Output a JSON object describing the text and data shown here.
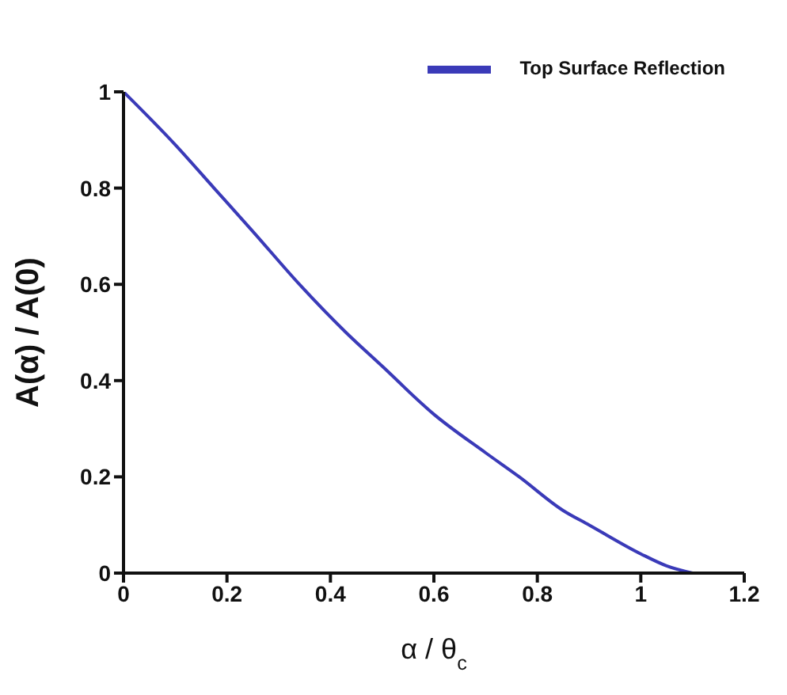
{
  "chart_data": {
    "type": "line",
    "xlabel": "α / θ$_{c}$",
    "ylabel": "A(α) / A(0)",
    "x": [
      0,
      0.1,
      0.175,
      0.25,
      0.34,
      0.43,
      0.5,
      0.6,
      0.7,
      0.765,
      0.85,
      0.9,
      1.0,
      1.05,
      1.1
    ],
    "series": [
      {
        "name": "Top Surface Reflection",
        "color": "#3a3ab8",
        "values": [
          1,
          0.89,
          0.8,
          0.71,
          0.6,
          0.5,
          0.43,
          0.33,
          0.25,
          0.2,
          0.13,
          0.1,
          0.04,
          0.015,
          0
        ]
      }
    ],
    "xlim": [
      0,
      1.2
    ],
    "xticks": [
      0,
      0.2,
      0.4,
      0.6,
      0.8,
      1,
      1.2
    ],
    "ylim": [
      0,
      1
    ],
    "yticks": [
      0,
      0.2,
      0.4,
      0.6,
      0.8,
      1
    ],
    "grid": false,
    "legend": "top right",
    "marker": "none",
    "line_style": "solid"
  }
}
